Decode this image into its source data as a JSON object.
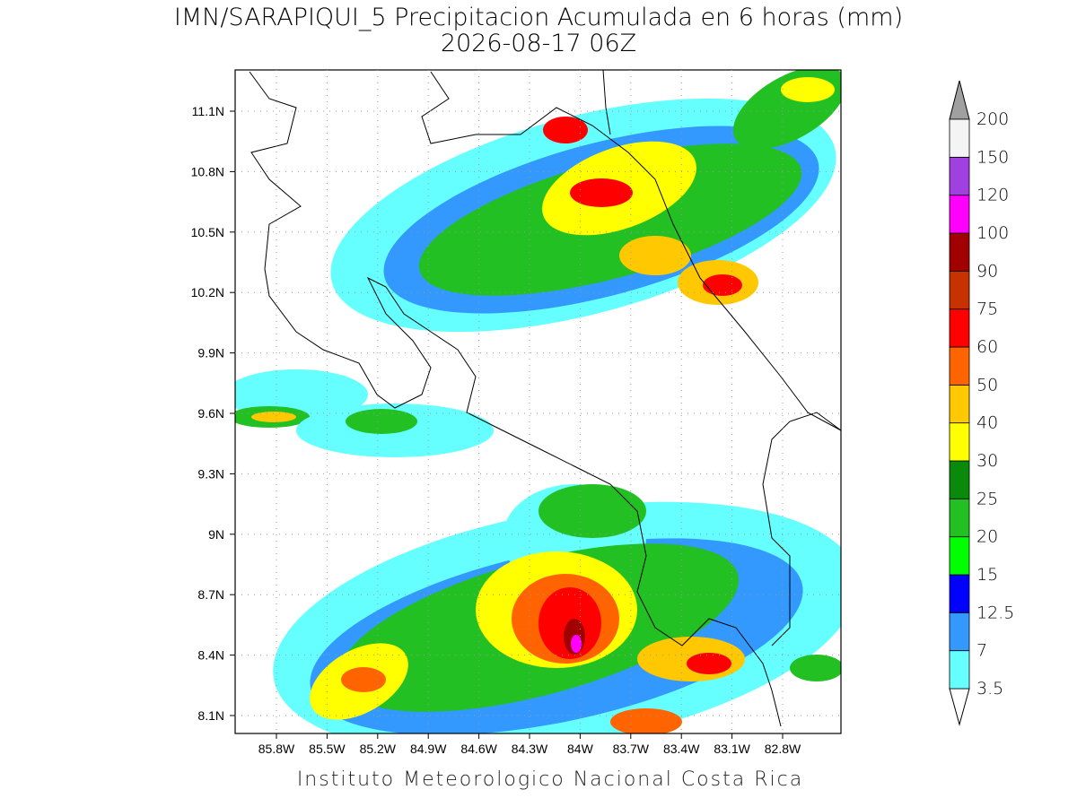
{
  "header": {
    "title": "IMN/SARAPIQUI_5 Precipitacion Acumulada en 6 horas (mm)",
    "subtitle": "2026-08-17 06Z"
  },
  "map": {
    "lat_labels": [
      "11.1N",
      "10.8N",
      "10.5N",
      "10.2N",
      "9.9N",
      "9.6N",
      "9.3N",
      "9N",
      "8.7N",
      "8.4N",
      "8.1N"
    ],
    "lon_labels": [
      "85.8W",
      "85.5W",
      "85.2W",
      "84.9W",
      "84.6W",
      "84.3W",
      "84W",
      "83.7W",
      "83.4W",
      "83.1W",
      "82.8W"
    ]
  },
  "colorbar": {
    "labels": [
      "3.5",
      "7",
      "12.5",
      "15",
      "20",
      "25",
      "30",
      "40",
      "50",
      "60",
      "75",
      "90",
      "100",
      "120",
      "150",
      "200"
    ],
    "colors": [
      "#66ffff",
      "#3399ff",
      "#0000ff",
      "#00ff00",
      "#22c022",
      "#0a8a0a",
      "#ffff00",
      "#ffc800",
      "#ff6400",
      "#ff0000",
      "#c83200",
      "#a00000",
      "#ff00ff",
      "#a040e0",
      "#f4f4f4"
    ],
    "under_color": "#ffffff",
    "over_color": "#a0a0a0"
  },
  "footer": "Instituto Meteorologico Nacional Costa Rica"
}
